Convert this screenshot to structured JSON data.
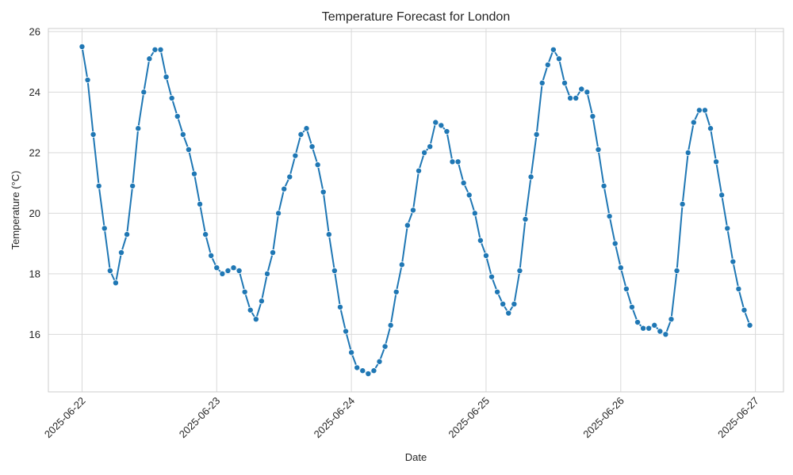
{
  "chart_data": {
    "type": "line",
    "title": "Temperature Forecast for London",
    "xlabel": "Date",
    "ylabel": "Temperature (°C)",
    "x_start": "2025-06-22T00:00",
    "x_step_hours": 1,
    "xlim": [
      "2025-06-21T18:00",
      "2025-06-27T05:00"
    ],
    "ylim": [
      14.1,
      26.1
    ],
    "x_ticks": [
      "2025-06-22",
      "2025-06-23",
      "2025-06-24",
      "2025-06-25",
      "2025-06-26",
      "2025-06-27"
    ],
    "y_ticks": [
      16,
      18,
      20,
      22,
      24,
      26
    ],
    "grid": true,
    "colors": {
      "line": "#1f77b4",
      "grid": "#d9d9d9",
      "axis": "#cccccc"
    },
    "series": [
      {
        "values": [
          25.5,
          24.4,
          22.6,
          20.9,
          19.5,
          18.1,
          17.7,
          18.7,
          19.3,
          20.9,
          22.8,
          24.0,
          25.1,
          25.4,
          25.4,
          24.5,
          23.8,
          23.2,
          22.6,
          22.1,
          21.3,
          20.3,
          19.3,
          18.6,
          18.2,
          18.0,
          18.1,
          18.2,
          18.1,
          17.4,
          16.8,
          16.5,
          17.1,
          18.0,
          18.7,
          20.0,
          20.8,
          21.2,
          21.9,
          22.6,
          22.8,
          22.2,
          21.6,
          20.7,
          19.3,
          18.1,
          16.9,
          16.1,
          15.4,
          14.9,
          14.8,
          14.7,
          14.8,
          15.1,
          15.6,
          16.3,
          17.4,
          18.3,
          19.6,
          20.1,
          21.4,
          22.0,
          22.2,
          23.0,
          22.9,
          22.7,
          21.7,
          21.7,
          21.0,
          20.6,
          20.0,
          19.1,
          18.6,
          17.9,
          17.4,
          17.0,
          16.7,
          17.0,
          18.1,
          19.8,
          21.2,
          22.6,
          24.3,
          24.9,
          25.4,
          25.1,
          24.3,
          23.8,
          23.8,
          24.1,
          24.0,
          23.2,
          22.1,
          20.9,
          19.9,
          19.0,
          18.2,
          17.5,
          16.9,
          16.4,
          16.2,
          16.2,
          16.3,
          16.1,
          16.0,
          16.5,
          18.1,
          20.3,
          22.0,
          23.0,
          23.4,
          23.4,
          22.8,
          21.7,
          20.6,
          19.5,
          18.4,
          17.5,
          16.8,
          16.3
        ]
      }
    ]
  }
}
